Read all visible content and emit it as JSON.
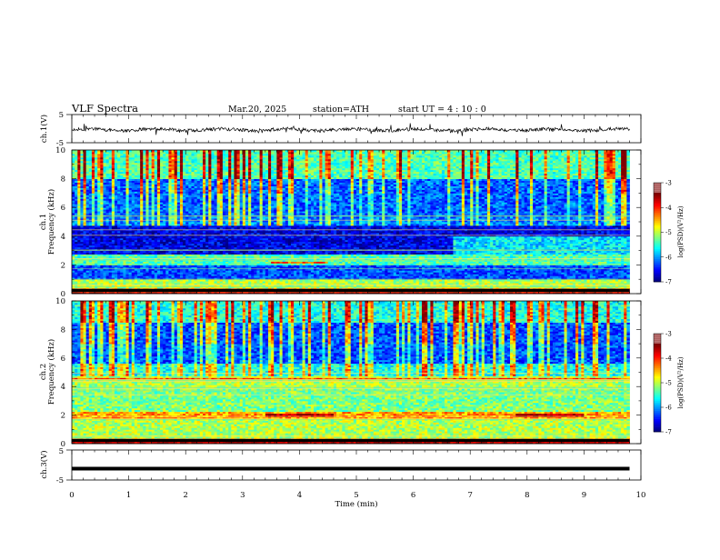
{
  "header": {
    "title": "VLF  Spectra",
    "date": "Mar.20, 2025",
    "station": "station=ATH",
    "start": "start  UT  =   4  : 10 : 0"
  },
  "chart_data": [
    {
      "type": "line",
      "panel": "ch1-waveform",
      "ylabel": "ch.1(V)",
      "ylim": [
        -5,
        5
      ],
      "yticks": [
        "5",
        "-5"
      ],
      "xlim": [
        0,
        10
      ],
      "x_end": 9.8,
      "trace_level_v": -0.4
    },
    {
      "type": "heatmap",
      "panel": "ch1-spectrogram",
      "ylabel": "ch.1\nFrequency (kHz)",
      "ylabel_lines": [
        "ch.1",
        "Frequency (kHz)"
      ],
      "ylim": [
        0,
        10
      ],
      "yticks": [
        "0",
        "2",
        "4",
        "6",
        "8",
        "10"
      ],
      "xlim": [
        0,
        10
      ],
      "x_end": 9.8,
      "colorbar": {
        "label": "log(PSD)(V²/Hz)",
        "range": [
          -7,
          -3
        ],
        "ticks": [
          "-3",
          "-4",
          "-5",
          "-6",
          "-7"
        ]
      }
    },
    {
      "type": "heatmap",
      "panel": "ch2-spectrogram",
      "ylabel": "ch.2\nFrequency (kHz)",
      "ylabel_lines": [
        "ch.2",
        "Frequency (kHz)"
      ],
      "ylim": [
        0,
        10
      ],
      "yticks": [
        "0",
        "2",
        "4",
        "6",
        "8",
        "10"
      ],
      "xlim": [
        0,
        10
      ],
      "x_end": 9.8,
      "colorbar": {
        "label": "log(PSD)(V²/Hz)",
        "range": [
          -7,
          -3
        ],
        "ticks": [
          "-3",
          "-4",
          "-5",
          "-6",
          "-7"
        ]
      }
    },
    {
      "type": "line",
      "panel": "ch3-waveform",
      "ylabel": "ch.3(V)",
      "ylim": [
        -5,
        5
      ],
      "yticks": [
        "5",
        "-5"
      ],
      "xlim": [
        0,
        10
      ],
      "x_end": 9.8,
      "trace_level_v": -1.2
    }
  ],
  "xaxis": {
    "label": "Time  (min)",
    "ticks": [
      "0",
      "1",
      "2",
      "3",
      "4",
      "5",
      "6",
      "7",
      "8",
      "9",
      "10"
    ]
  }
}
